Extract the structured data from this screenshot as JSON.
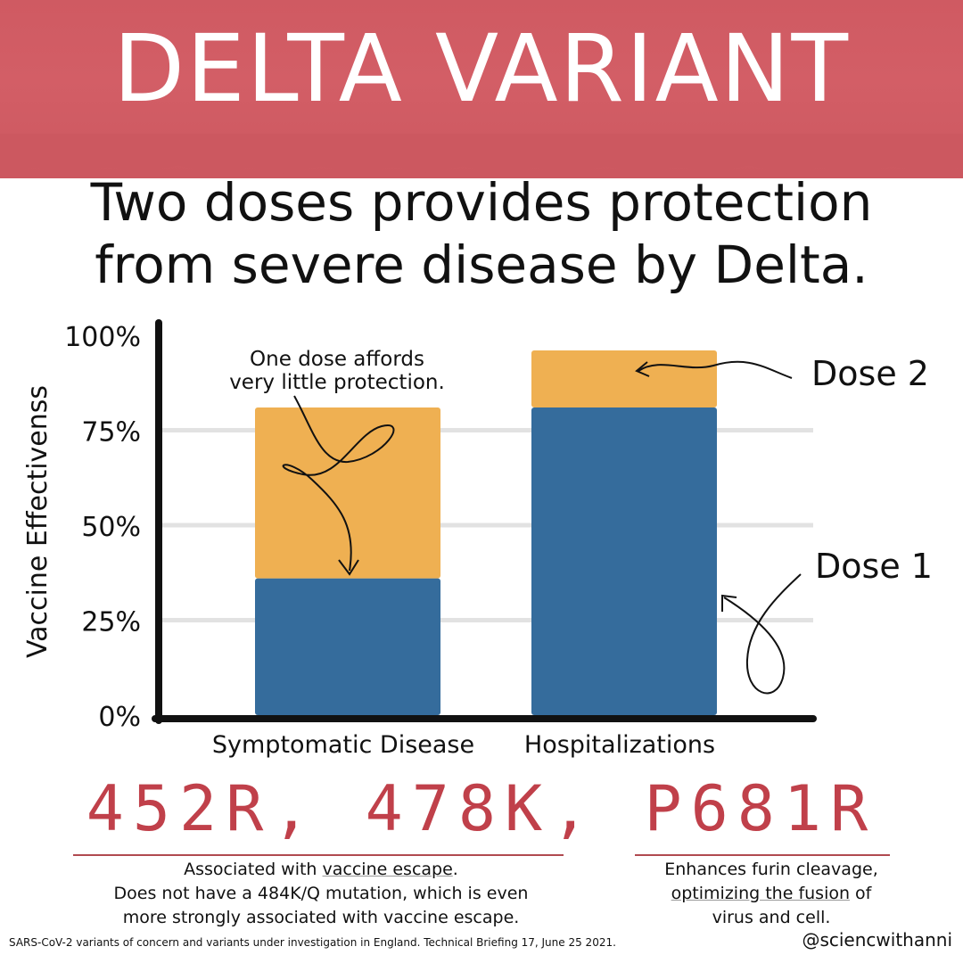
{
  "title": "DELTA VARIANT",
  "headline": {
    "line1": "Two doses provides protection",
    "line2": "from severe disease by Delta."
  },
  "colors": {
    "banner": "#d05c64",
    "dose1": "#356c9c",
    "dose2": "#efb052",
    "mutation_text": "#c0404a"
  },
  "chart_data": {
    "type": "bar",
    "stacked": true,
    "categories": [
      "Symptomatic Disease",
      "Hospitalizations"
    ],
    "series": [
      {
        "name": "Dose 1",
        "values": [
          36,
          81
        ]
      },
      {
        "name": "Dose 2",
        "values": [
          45,
          15
        ]
      }
    ],
    "totals": [
      81,
      96
    ],
    "ylabel": "Vaccine Effectivenss",
    "ylim": [
      0,
      100
    ],
    "yticks": [
      "0%",
      "25%",
      "50%",
      "75%",
      "100%"
    ],
    "grid": true,
    "legend": "right, labels pointing to bars",
    "annotation": {
      "line1": "One dose affords",
      "line2": "very little protection."
    }
  },
  "mutations": "452R, 478K, P681R",
  "note_left": {
    "line1_prefix": "Associated with ",
    "line1_highlight": "vaccine escape",
    "line1_suffix": ".",
    "line2": "Does not have a 484K/Q mutation, which is even",
    "line3": "more strongly associated with vaccine escape."
  },
  "note_right": {
    "line1": "Enhances furin cleavage,",
    "line2_highlight": "optimizing the fusion",
    "line2_suffix": " of",
    "line3": "virus and cell."
  },
  "footer": {
    "source": "SARS-CoV-2 variants of concern and variants under investigation in England. Technical Briefing 17, June 25 2021.",
    "handle": "@sciencwithanni"
  }
}
